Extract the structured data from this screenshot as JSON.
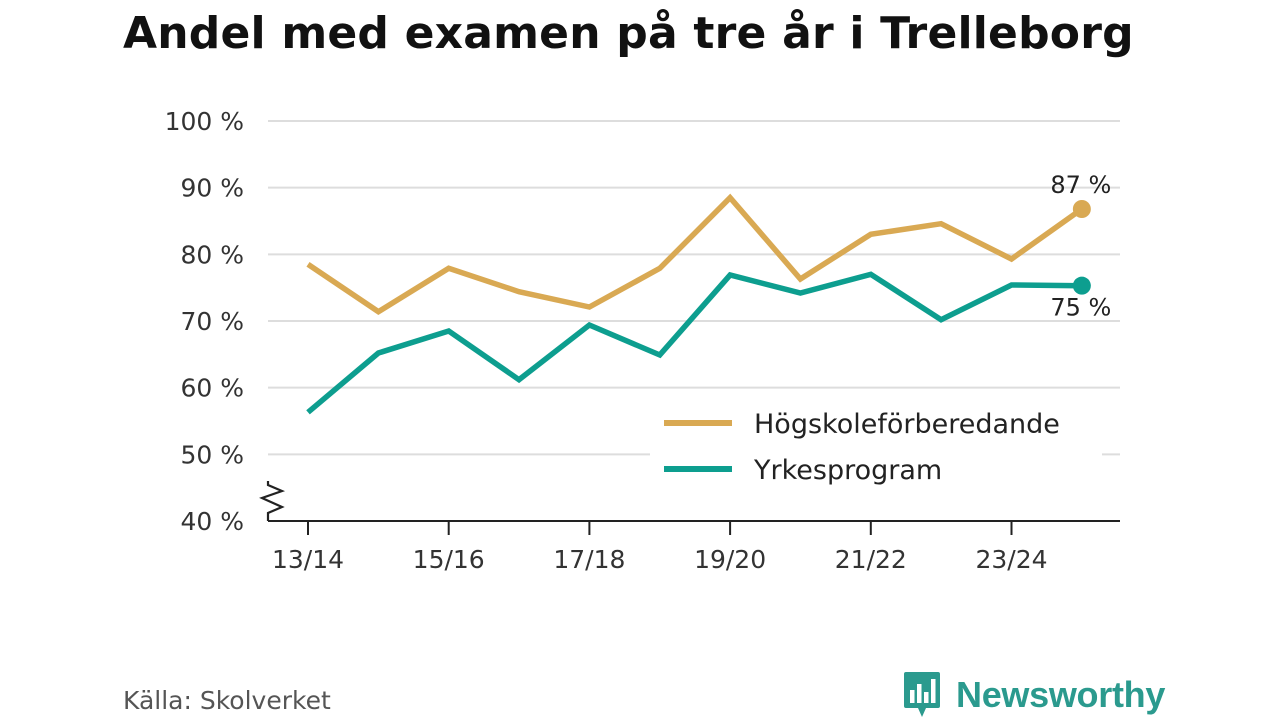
{
  "title": "Andel med examen på tre år i Trelleborg",
  "source": "Källa: Skolverket",
  "brand": "Newsworthy",
  "icons": {
    "brand_logo": "newsworthy-logo-icon",
    "axis_break": "axis-break-icon"
  },
  "chart_data": {
    "type": "line",
    "title": "Andel med examen på tre år i Trelleborg",
    "xlabel": "",
    "ylabel": "",
    "categories": [
      "13/14",
      "14/15",
      "15/16",
      "16/17",
      "17/18",
      "18/19",
      "19/20",
      "20/21",
      "21/22",
      "22/23",
      "23/24",
      "24/25"
    ],
    "x_tick_labels": [
      "13/14",
      "15/16",
      "17/18",
      "19/20",
      "21/22",
      "23/24"
    ],
    "y_tick_labels": [
      "40 %",
      "50 %",
      "60 %",
      "70 %",
      "80 %",
      "90 %",
      "100 %"
    ],
    "ylim": [
      40,
      100
    ],
    "yticks": [
      40,
      50,
      60,
      70,
      80,
      90,
      100
    ],
    "grid": true,
    "axis_break": true,
    "legend_position": "bottom-right",
    "series": [
      {
        "name": "Högskoleförberedande",
        "color": "#d9a953",
        "values": [
          78.5,
          71.4,
          77.9,
          74.4,
          72.1,
          77.9,
          88.5,
          76.3,
          83.0,
          84.6,
          79.3,
          86.8
        ],
        "end_label": "87 %"
      },
      {
        "name": "Yrkesprogram",
        "color": "#0d9e8f",
        "values": [
          56.3,
          65.2,
          68.5,
          61.2,
          69.4,
          64.9,
          76.9,
          74.2,
          77.0,
          70.2,
          75.4,
          75.3
        ],
        "end_label": "75 %"
      }
    ]
  }
}
